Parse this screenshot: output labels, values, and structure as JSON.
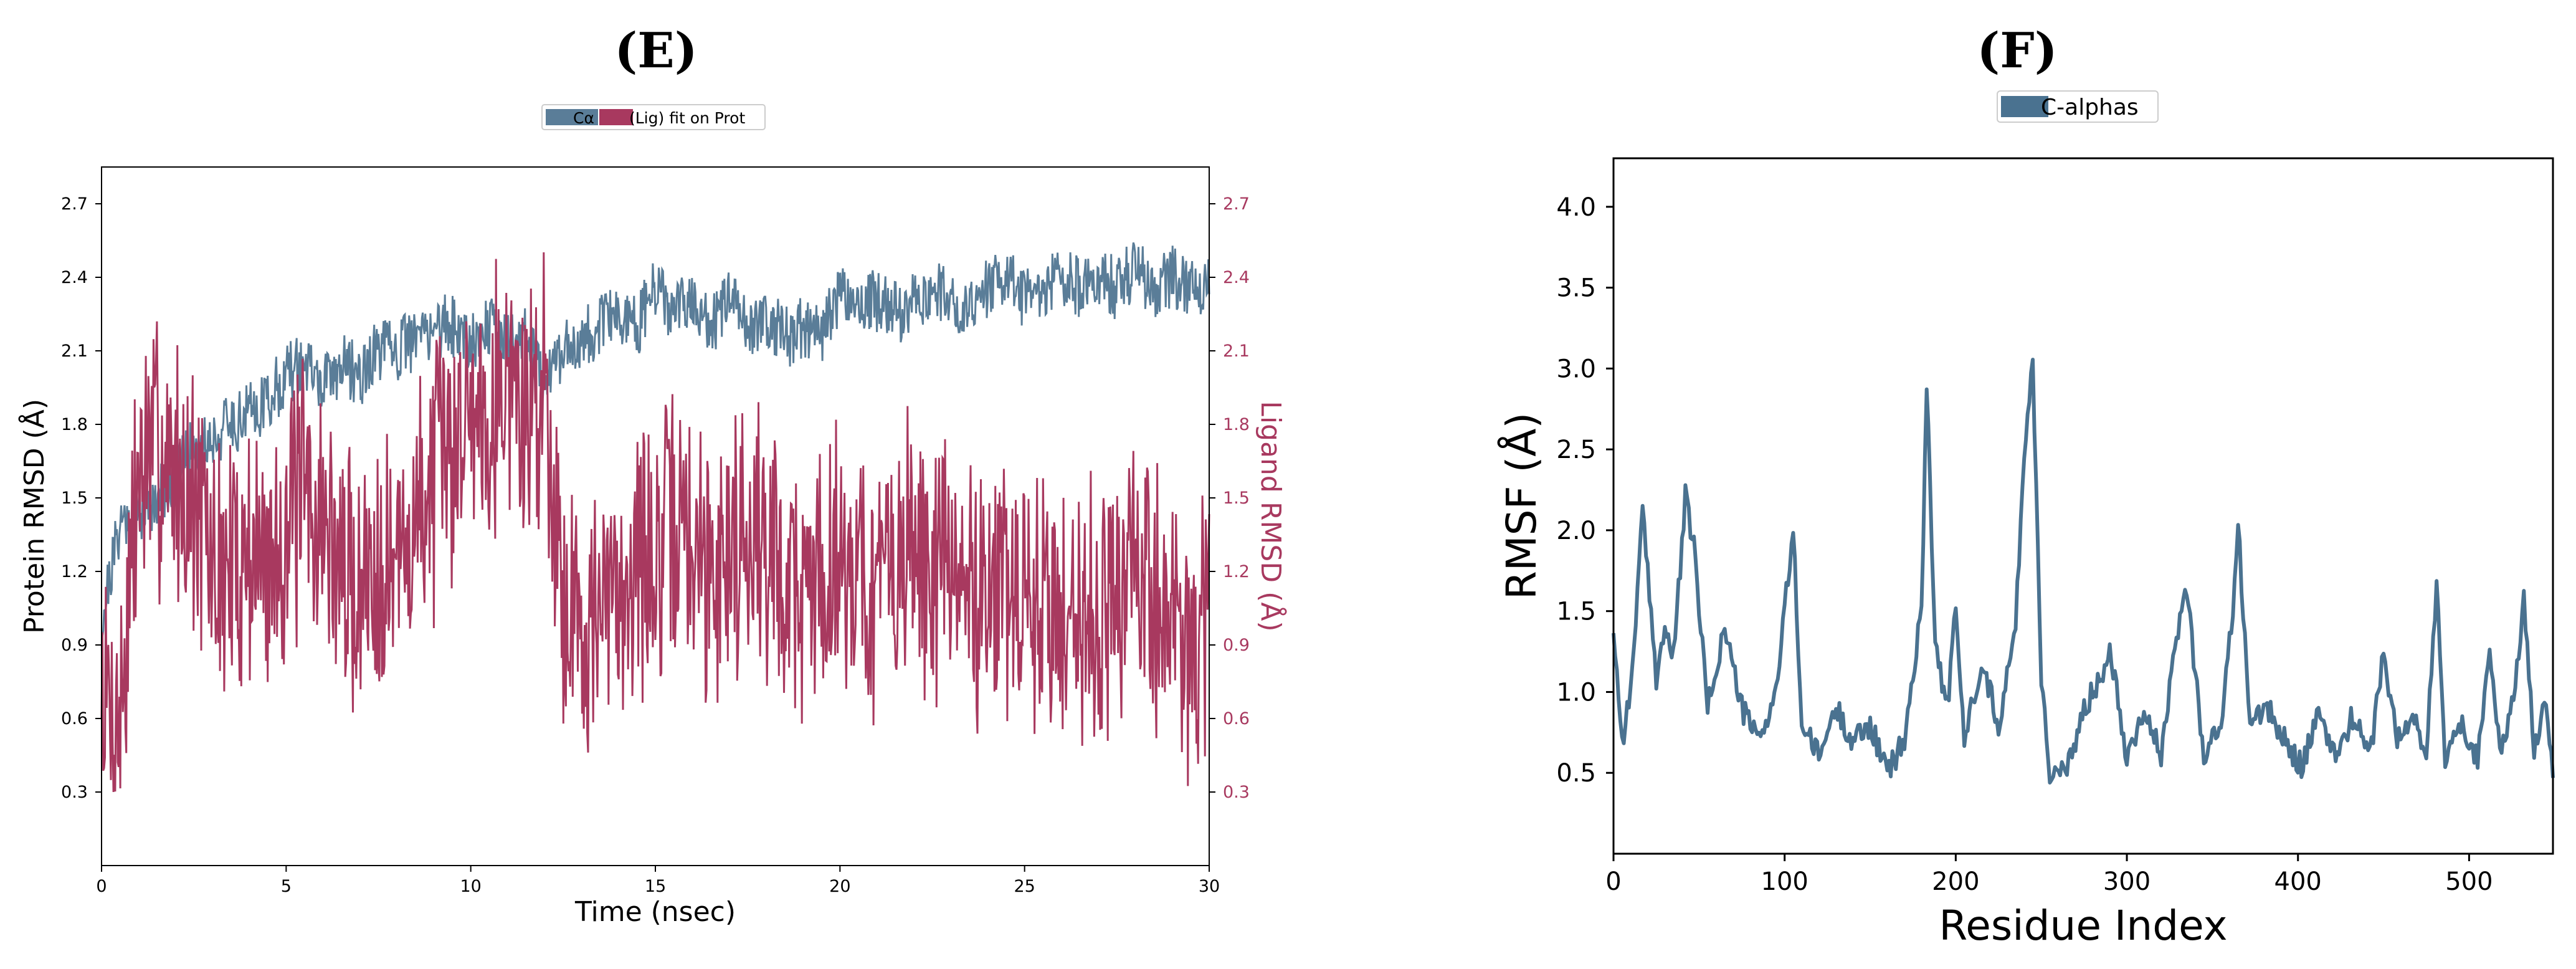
{
  "panels": [
    {
      "label": "(E)"
    },
    {
      "label": "(F)"
    }
  ],
  "chart_data": [
    {
      "type": "line",
      "panel": "(E)",
      "xlabel": "Time (nsec)",
      "ylabel": "Protein RMSD (Å)",
      "y2label": "Ligand RMSD (Å)",
      "xlim": [
        0,
        30
      ],
      "ylim": [
        0.0,
        2.85
      ],
      "y2lim": [
        0.0,
        2.85
      ],
      "xticks": [
        0,
        5,
        10,
        15,
        20,
        25,
        30
      ],
      "yticks": [
        0.3,
        0.6,
        0.9,
        1.2,
        1.5,
        1.8,
        2.1,
        2.4,
        2.7
      ],
      "y2ticks": [
        0.3,
        0.6,
        0.9,
        1.2,
        1.5,
        1.8,
        2.1,
        2.4,
        2.7
      ],
      "legend": {
        "placement": "top-center",
        "entries": [
          "Cα",
          "(Lig) fit on Prot"
        ]
      },
      "grid": false,
      "series": [
        {
          "name": "Cα",
          "axis": "left",
          "color": "#5a7d98",
          "x": [
            0,
            0.5,
            1,
            1.5,
            2,
            2.5,
            3,
            3.5,
            4,
            4.5,
            5,
            5.5,
            6,
            6.5,
            7,
            7.5,
            8,
            8.5,
            9,
            9.5,
            10,
            10.5,
            11,
            11.5,
            12,
            12.5,
            13,
            13.5,
            14,
            14.5,
            15,
            15.5,
            16,
            16.5,
            17,
            17.5,
            18,
            18.5,
            19,
            19.5,
            20,
            20.5,
            21,
            21.5,
            22,
            22.5,
            23,
            23.5,
            24,
            24.5,
            25,
            25.5,
            26,
            26.5,
            27,
            27.5,
            28,
            28.5,
            29,
            29.5,
            30
          ],
          "y": [
            1.0,
            1.4,
            1.45,
            1.5,
            1.6,
            1.7,
            1.75,
            1.8,
            1.85,
            1.9,
            2.0,
            2.05,
            1.95,
            2.05,
            2.0,
            2.1,
            2.1,
            2.15,
            2.2,
            2.2,
            2.15,
            2.2,
            2.15,
            2.15,
            2.0,
            2.1,
            2.15,
            2.2,
            2.25,
            2.2,
            2.35,
            2.25,
            2.3,
            2.2,
            2.3,
            2.2,
            2.25,
            2.15,
            2.2,
            2.15,
            2.35,
            2.3,
            2.3,
            2.25,
            2.3,
            2.35,
            2.3,
            2.3,
            2.35,
            2.4,
            2.3,
            2.35,
            2.4,
            2.35,
            2.4,
            2.35,
            2.45,
            2.35,
            2.4,
            2.35,
            2.4
          ]
        },
        {
          "name": "(Lig) fit on Prot",
          "axis": "right",
          "color": "#a8395f",
          "x": [
            0,
            0.5,
            1,
            1.5,
            2,
            2.5,
            3,
            3.5,
            4,
            4.5,
            5,
            5.5,
            6,
            6.5,
            7,
            7.5,
            8,
            8.5,
            9,
            9.5,
            10,
            10.5,
            11,
            11.5,
            12,
            12.5,
            13,
            13.5,
            14,
            14.5,
            15,
            15.5,
            16,
            16.5,
            17,
            17.5,
            18,
            18.5,
            19,
            19.5,
            20,
            20.5,
            21,
            21.5,
            22,
            22.5,
            23,
            23.5,
            24,
            24.5,
            25,
            25.5,
            26,
            26.5,
            27,
            27.5,
            28,
            28.5,
            29,
            29.5,
            30
          ],
          "y": [
            0.7,
            0.6,
            1.6,
            1.7,
            1.6,
            1.5,
            1.2,
            1.2,
            1.3,
            1.2,
            1.4,
            1.5,
            1.4,
            1.2,
            1.1,
            1.3,
            1.2,
            1.4,
            1.6,
            1.7,
            1.9,
            1.9,
            2.0,
            1.8,
            2.0,
            1.1,
            1.0,
            1.0,
            1.1,
            1.3,
            1.2,
            1.4,
            1.3,
            1.2,
            1.3,
            1.4,
            1.3,
            1.2,
            1.1,
            1.2,
            1.3,
            1.2,
            1.1,
            1.2,
            1.3,
            1.2,
            1.2,
            1.1,
            1.2,
            1.1,
            1.0,
            1.1,
            1.0,
            1.1,
            1.0,
            1.1,
            1.2,
            1.1,
            1.0,
            0.9,
            0.9
          ]
        }
      ]
    },
    {
      "type": "line",
      "panel": "(F)",
      "xlabel": "Residue Index",
      "ylabel": "RMSF (Å)",
      "xlim": [
        0,
        549
      ],
      "ylim": [
        0.0,
        4.3
      ],
      "xticks": [
        0,
        100,
        200,
        300,
        400,
        500
      ],
      "yticks": [
        0.5,
        1.0,
        1.5,
        2.0,
        2.5,
        3.0,
        3.5,
        4.0
      ],
      "legend": {
        "placement": "top-center",
        "entries": [
          "C-alphas"
        ]
      },
      "grid": false,
      "series": [
        {
          "name": "C-alphas",
          "color": "#4a7290",
          "x": [
            0,
            5,
            10,
            17,
            25,
            30,
            35,
            42,
            47,
            55,
            65,
            75,
            85,
            95,
            105,
            110,
            120,
            130,
            140,
            150,
            160,
            170,
            180,
            183,
            188,
            195,
            200,
            205,
            215,
            225,
            235,
            240,
            245,
            250,
            255,
            265,
            275,
            285,
            290,
            300,
            310,
            320,
            330,
            335,
            345,
            355,
            362,
            365,
            372,
            382,
            392,
            402,
            412,
            422,
            432,
            442,
            450,
            458,
            468,
            475,
            481,
            486,
            495,
            505,
            512,
            518,
            525,
            532,
            538,
            545,
            549
          ],
          "y": [
            1.4,
            0.7,
            1.0,
            2.1,
            1.1,
            1.4,
            1.2,
            2.2,
            1.9,
            0.9,
            1.4,
            0.9,
            0.7,
            1.0,
            2.0,
            0.8,
            0.6,
            0.9,
            0.7,
            0.8,
            0.5,
            0.7,
            1.5,
            2.95,
            1.3,
            0.9,
            1.5,
            0.7,
            1.2,
            0.8,
            1.4,
            2.5,
            3.05,
            1.1,
            0.5,
            0.5,
            0.9,
            1.1,
            1.3,
            0.6,
            0.9,
            0.6,
            1.4,
            1.65,
            0.6,
            0.8,
            1.5,
            2.05,
            0.8,
            0.9,
            0.7,
            0.55,
            0.85,
            0.6,
            0.85,
            0.6,
            1.25,
            0.7,
            0.85,
            0.6,
            1.65,
            0.6,
            0.8,
            0.6,
            1.3,
            0.6,
            0.9,
            1.55,
            0.65,
            1.0,
            0.5
          ]
        }
      ]
    }
  ]
}
